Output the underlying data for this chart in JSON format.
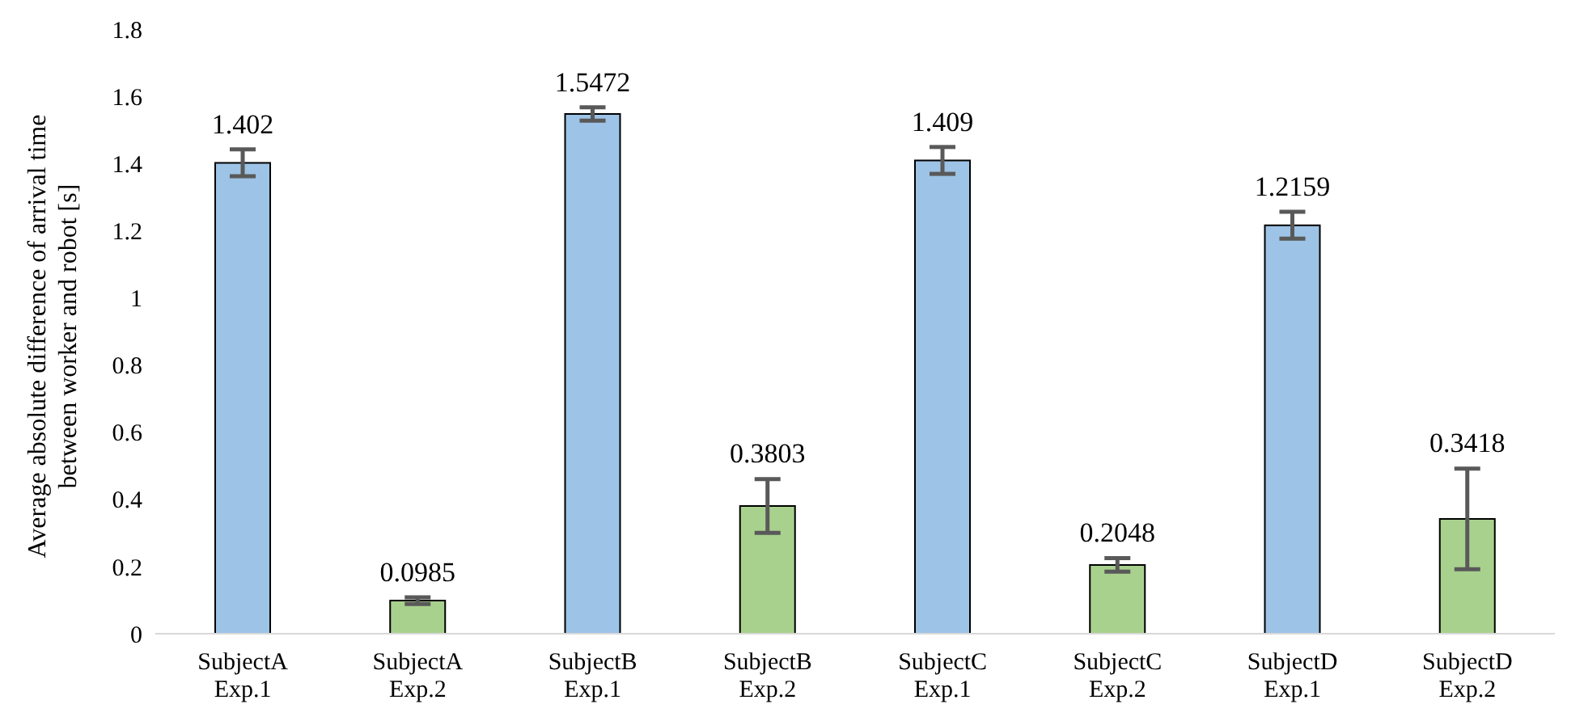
{
  "chart_data": {
    "type": "bar",
    "ylabel": "Average absolute difference of arrival time\nbetween worker and robot [s]",
    "categories": [
      "SubjectA\nExp.1",
      "SubjectA\nExp.2",
      "SubjectB\nExp.1",
      "SubjectB\nExp.2",
      "SubjectC\nExp.1",
      "SubjectC\nExp.2",
      "SubjectD\nExp.1",
      "SubjectD\nExp.2"
    ],
    "values": [
      1.402,
      0.0985,
      1.5472,
      0.3803,
      1.409,
      0.2048,
      1.2159,
      0.3418
    ],
    "colors": [
      "#9dc3e6",
      "#a9d18e",
      "#9dc3e6",
      "#a9d18e",
      "#9dc3e6",
      "#a9d18e",
      "#9dc3e6",
      "#a9d18e"
    ],
    "errors": [
      0.04,
      0.01,
      0.02,
      0.08,
      0.04,
      0.02,
      0.04,
      0.15
    ],
    "ylim": [
      0,
      1.8
    ],
    "yticks": [
      0,
      0.2,
      0.4,
      0.6,
      0.8,
      1,
      1.2,
      1.4,
      1.6,
      1.8
    ],
    "data_labels": true
  }
}
